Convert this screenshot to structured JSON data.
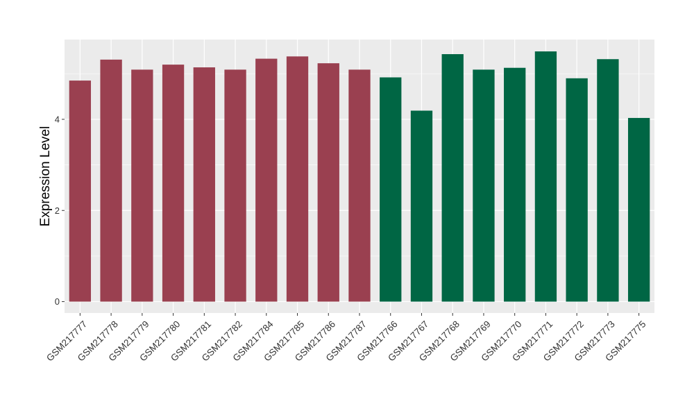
{
  "chart_data": {
    "type": "bar",
    "title": "",
    "xlabel": "",
    "ylabel": "Expression Level",
    "ylim": [
      -0.25,
      5.75
    ],
    "yticks": [
      0,
      2,
      4
    ],
    "grid": true,
    "legend": "none",
    "panel_background": "#ebebeb",
    "grid_color": "#ffffff",
    "categories": [
      "GSM217777",
      "GSM217778",
      "GSM217779",
      "GSM217780",
      "GSM217781",
      "GSM217782",
      "GSM217784",
      "GSM217785",
      "GSM217786",
      "GSM217787",
      "GSM217766",
      "GSM217767",
      "GSM217768",
      "GSM217769",
      "GSM217770",
      "GSM217771",
      "GSM217772",
      "GSM217773",
      "GSM217775"
    ],
    "values": [
      4.85,
      5.31,
      5.09,
      5.2,
      5.14,
      5.09,
      5.33,
      5.38,
      5.23,
      5.09,
      4.92,
      4.19,
      5.43,
      5.09,
      5.13,
      5.49,
      4.9,
      5.32,
      4.03
    ],
    "bar_colors": [
      "#9a4050",
      "#9a4050",
      "#9a4050",
      "#9a4050",
      "#9a4050",
      "#9a4050",
      "#9a4050",
      "#9a4050",
      "#9a4050",
      "#9a4050",
      "#006644",
      "#006644",
      "#006644",
      "#006644",
      "#006644",
      "#006644",
      "#006644",
      "#006644",
      "#006644"
    ]
  }
}
